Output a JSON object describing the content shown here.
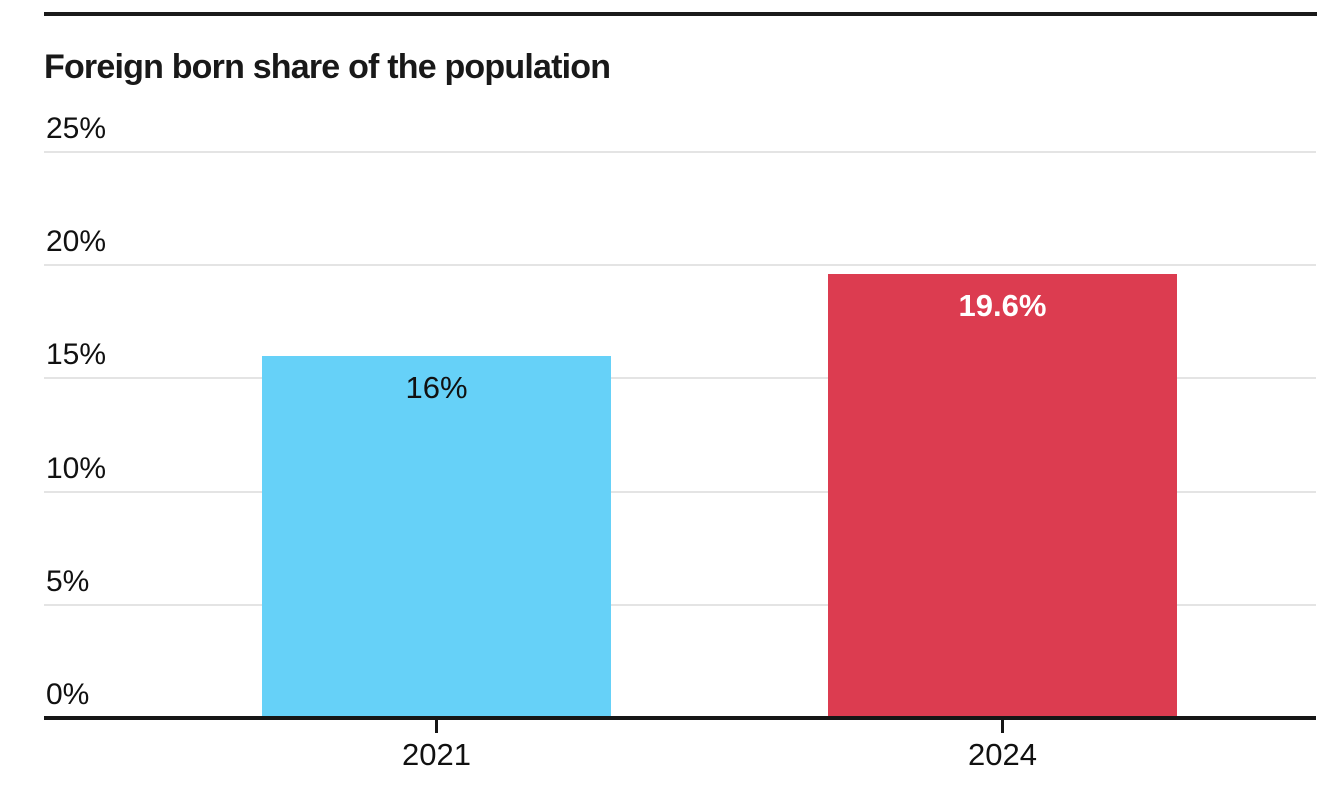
{
  "chart_data": {
    "type": "bar",
    "title": "Foreign born share of the population",
    "categories": [
      "2021",
      "2024"
    ],
    "values": [
      16,
      19.6
    ],
    "value_labels": [
      "16%",
      "19.6%"
    ],
    "bar_colors": [
      "#66d1f8",
      "#dc3c50"
    ],
    "value_label_colors": [
      "#111111",
      "#ffffff"
    ],
    "value_label_weights": [
      "400",
      "800"
    ],
    "xlabel": "",
    "ylabel": "",
    "ylim": [
      0,
      25
    ],
    "yticks": [
      0,
      5,
      10,
      15,
      20,
      25
    ],
    "ytick_labels": [
      "0%",
      "5%",
      "10%",
      "15%",
      "20%",
      "25%"
    ],
    "grid": "horizontal",
    "legend": "none"
  },
  "colors": {
    "background": "#ffffff",
    "top_rule": "#1a1a1a",
    "axis": "#161616",
    "gridline": "#e4e4e4",
    "text": "#111111"
  }
}
